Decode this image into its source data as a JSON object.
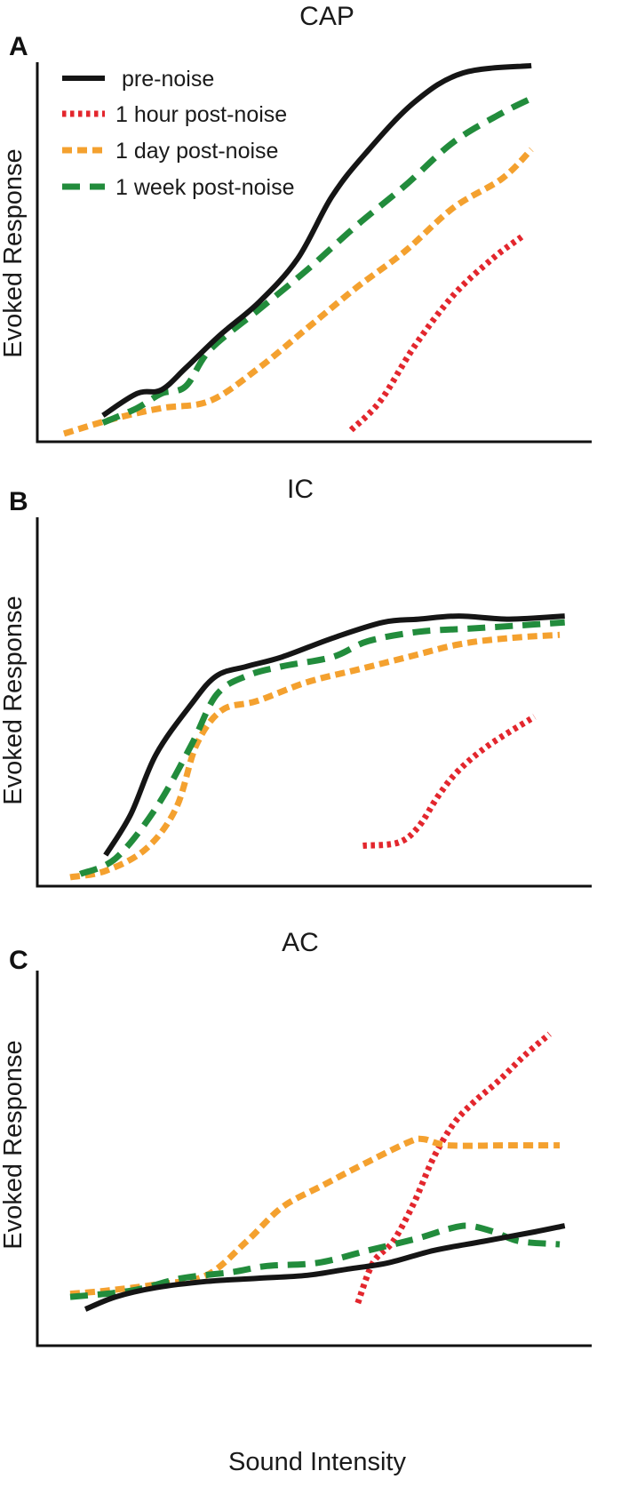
{
  "colors": {
    "pre_noise": "#151515",
    "hour_1": "#e3262d",
    "day_1": "#f4a12f",
    "week_1": "#228c3c"
  },
  "chart_data": [
    {
      "type": "line",
      "panel": "A",
      "title": "CAP",
      "xlabel": "",
      "ylabel": "Evoked Response",
      "xlim": [
        0,
        100
      ],
      "ylim": [
        0,
        100
      ],
      "legend": "top-left",
      "series": [
        {
          "name": "pre-noise",
          "style": "solid",
          "color_key": "pre_noise",
          "x": [
            8,
            15,
            20,
            25,
            32,
            40,
            48,
            55,
            62,
            72,
            82,
            96
          ],
          "y": [
            6,
            12,
            13,
            19,
            28,
            37,
            49,
            66,
            78,
            92,
            100,
            102
          ]
        },
        {
          "name": "1 hour post-noise",
          "style": "dotted",
          "color_key": "hour_1",
          "x": [
            59,
            65,
            72,
            80,
            88,
            94
          ],
          "y": [
            2,
            10,
            25,
            39,
            49,
            55
          ]
        },
        {
          "name": "1 day post-noise",
          "style": "short-dash",
          "color_key": "day_1",
          "x": [
            0,
            10,
            20,
            30,
            40,
            50,
            60,
            70,
            80,
            90,
            96
          ],
          "y": [
            1,
            5,
            8,
            10,
            19,
            30,
            41,
            51,
            63,
            71,
            79
          ]
        },
        {
          "name": "1 week post-noise",
          "style": "long-dash",
          "color_key": "week_1",
          "x": [
            8,
            15,
            20,
            25,
            30,
            40,
            50,
            60,
            70,
            80,
            90,
            96
          ],
          "y": [
            4,
            8,
            12,
            14,
            24,
            35,
            46,
            58,
            69,
            81,
            89,
            93
          ]
        }
      ]
    },
    {
      "type": "line",
      "panel": "B",
      "title": "IC",
      "xlabel": "",
      "ylabel": "Evoked Response",
      "xlim": [
        0,
        100
      ],
      "ylim": [
        0,
        100
      ],
      "series": [
        {
          "name": "pre-noise",
          "style": "solid",
          "color_key": "pre_noise",
          "x": [
            10,
            15,
            20,
            27,
            32,
            38,
            45,
            55,
            65,
            72,
            80,
            90,
            101
          ],
          "y": [
            9,
            22,
            41,
            57,
            66,
            69,
            72,
            78,
            83,
            84,
            85,
            84,
            85
          ]
        },
        {
          "name": "1 hour post-noise",
          "style": "dotted",
          "color_key": "hour_1",
          "x": [
            61,
            68,
            72,
            76,
            80,
            86,
            95
          ],
          "y": [
            12,
            13,
            18,
            28,
            36,
            44,
            53
          ]
        },
        {
          "name": "1 day post-noise",
          "style": "short-dash",
          "color_key": "day_1",
          "x": [
            3,
            10,
            18,
            24,
            28,
            33,
            40,
            50,
            60,
            70,
            80,
            90,
            100
          ],
          "y": [
            2,
            4,
            11,
            24,
            44,
            55,
            58,
            64,
            68,
            72,
            76,
            78,
            79
          ]
        },
        {
          "name": "1 week post-noise",
          "style": "long-dash",
          "color_key": "week_1",
          "x": [
            5,
            12,
            20,
            27,
            32,
            38,
            45,
            55,
            62,
            72,
            82,
            92,
            101
          ],
          "y": [
            3,
            8,
            24,
            44,
            60,
            66,
            69,
            72,
            77,
            80,
            81,
            82,
            83
          ]
        }
      ]
    },
    {
      "type": "line",
      "panel": "C",
      "title": "AC",
      "xlabel": "Sound Intensity",
      "ylabel": "Evoked Response",
      "xlim": [
        0,
        100
      ],
      "ylim": [
        0,
        100
      ],
      "series": [
        {
          "name": "pre-noise",
          "style": "solid",
          "color_key": "pre_noise",
          "x": [
            6,
            12,
            20,
            30,
            40,
            50,
            58,
            66,
            75,
            85,
            95,
            101
          ],
          "y": [
            2,
            6,
            9,
            11,
            12,
            13,
            15,
            17,
            21,
            24,
            27,
            29
          ]
        },
        {
          "name": "1 hour post-noise",
          "style": "dotted",
          "color_key": "hour_1",
          "x": [
            60,
            63,
            67,
            71,
            75,
            79,
            83,
            88,
            93,
            98
          ],
          "y": [
            4,
            17,
            24,
            36,
            51,
            62,
            69,
            76,
            84,
            91
          ]
        },
        {
          "name": "1 day post-noise",
          "style": "short-dash",
          "color_key": "day_1",
          "x": [
            3,
            10,
            20,
            30,
            38,
            45,
            53,
            60,
            70,
            73,
            78,
            90,
            100
          ],
          "y": [
            7,
            8,
            10,
            13,
            24,
            35,
            42,
            48,
            56,
            57,
            55,
            55,
            55
          ]
        },
        {
          "name": "1 week post-noise",
          "style": "long-dash",
          "color_key": "week_1",
          "x": [
            3,
            15,
            25,
            35,
            42,
            52,
            62,
            72,
            78,
            82,
            87,
            92,
            100
          ],
          "y": [
            6,
            8,
            12,
            14,
            16,
            17,
            21,
            25,
            28,
            29,
            27,
            24,
            23
          ]
        }
      ]
    }
  ]
}
